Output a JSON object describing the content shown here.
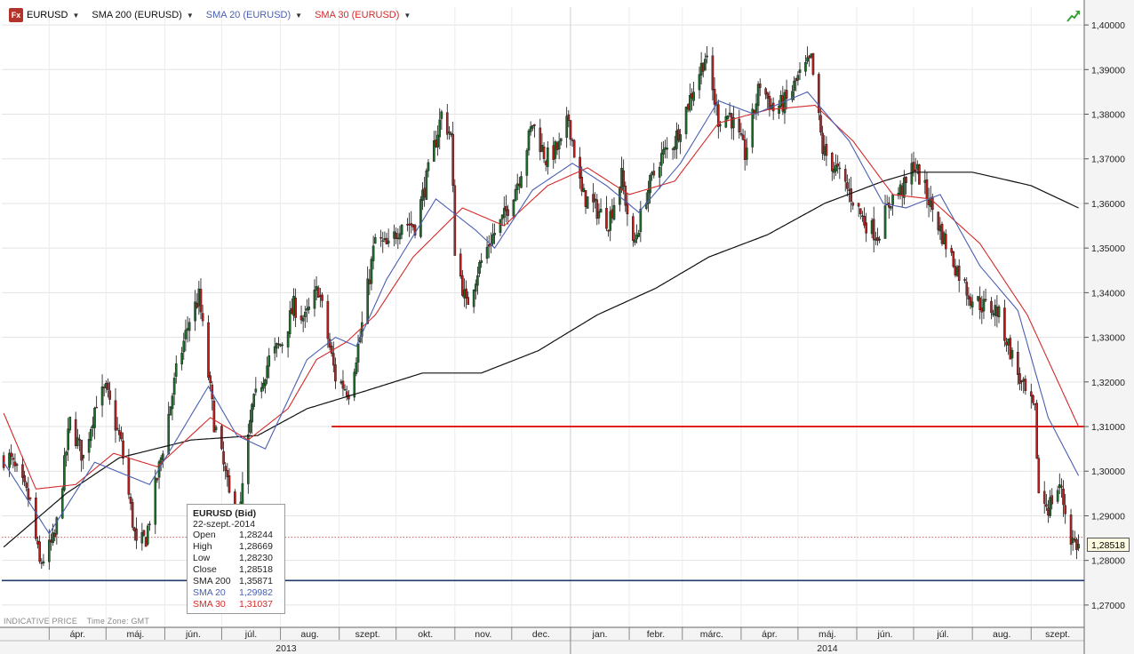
{
  "header": {
    "logo_text": "Fx",
    "symbol": "EURUSD",
    "indicators": [
      {
        "label": "SMA 200 (EURUSD)",
        "color": "#111111"
      },
      {
        "label": "SMA 20 (EURUSD)",
        "color": "#4a5fb0"
      },
      {
        "label": "SMA 30 (EURUSD)",
        "color": "#d42a2a"
      }
    ]
  },
  "footer": {
    "price_type": "INDICATIVE PRICE",
    "timezone": "Time Zone: GMT"
  },
  "tooltip": {
    "title": "EURUSD (Bid)",
    "date": "22-szept.-2014",
    "rows": [
      {
        "k": "Open",
        "v": "1,28244",
        "color": "#222222"
      },
      {
        "k": "High",
        "v": "1,28669",
        "color": "#222222"
      },
      {
        "k": "Low",
        "v": "1,28230",
        "color": "#222222"
      },
      {
        "k": "Close",
        "v": "1,28518",
        "color": "#222222"
      },
      {
        "k": "SMA 200",
        "v": "1,35871",
        "color": "#222222"
      },
      {
        "k": "SMA 20",
        "v": "1,29982",
        "color": "#4a5fb0"
      },
      {
        "k": "SMA 30",
        "v": "1,31037",
        "color": "#d42a2a"
      }
    ]
  },
  "last_price_label": "1,28518",
  "chart_data": {
    "type": "candlestick",
    "symbol": "EURUSD",
    "y_range": [
      1.265,
      1.404
    ],
    "y_ticks": [
      {
        "v": 1.27,
        "label": "1,27000"
      },
      {
        "v": 1.28,
        "label": "1,28000"
      },
      {
        "v": 1.29,
        "label": "1,29000"
      },
      {
        "v": 1.3,
        "label": "1,30000"
      },
      {
        "v": 1.31,
        "label": "1,31000"
      },
      {
        "v": 1.32,
        "label": "1,32000"
      },
      {
        "v": 1.33,
        "label": "1,33000"
      },
      {
        "v": 1.34,
        "label": "1,34000"
      },
      {
        "v": 1.35,
        "label": "1,35000"
      },
      {
        "v": 1.36,
        "label": "1,36000"
      },
      {
        "v": 1.37,
        "label": "1,37000"
      },
      {
        "v": 1.38,
        "label": "1,38000"
      },
      {
        "v": 1.39,
        "label": "1,39000"
      },
      {
        "v": 1.4,
        "label": "1,40000"
      }
    ],
    "x_range": [
      "2013-03-07",
      "2014-09-29"
    ],
    "months": [
      {
        "label": "ápr.",
        "start": "2013-04-01"
      },
      {
        "label": "máj.",
        "start": "2013-05-01"
      },
      {
        "label": "jún.",
        "start": "2013-06-01"
      },
      {
        "label": "júl.",
        "start": "2013-07-01"
      },
      {
        "label": "aug.",
        "start": "2013-08-01"
      },
      {
        "label": "szept.",
        "start": "2013-09-01"
      },
      {
        "label": "okt.",
        "start": "2013-10-01"
      },
      {
        "label": "nov.",
        "start": "2013-11-01"
      },
      {
        "label": "dec.",
        "start": "2013-12-01"
      },
      {
        "label": "jan.",
        "start": "2014-01-01"
      },
      {
        "label": "febr.",
        "start": "2014-02-01"
      },
      {
        "label": "márc.",
        "start": "2014-03-01"
      },
      {
        "label": "ápr.",
        "start": "2014-04-01"
      },
      {
        "label": "máj.",
        "start": "2014-05-01"
      },
      {
        "label": "jún.",
        "start": "2014-06-01"
      },
      {
        "label": "júl.",
        "start": "2014-07-01"
      },
      {
        "label": "aug.",
        "start": "2014-08-01"
      },
      {
        "label": "szept.",
        "start": "2014-09-01"
      }
    ],
    "years": [
      {
        "label": "2013",
        "start": "2013-03-07",
        "end": "2014-01-01"
      },
      {
        "label": "2014",
        "start": "2014-01-01",
        "end": "2014-09-29"
      }
    ],
    "close_anchors": [
      {
        "date": "2013-03-11",
        "v": 1.303
      },
      {
        "date": "2013-03-22",
        "v": 1.293
      },
      {
        "date": "2013-03-27",
        "v": 1.279
      },
      {
        "date": "2013-04-04",
        "v": 1.285
      },
      {
        "date": "2013-04-12",
        "v": 1.311
      },
      {
        "date": "2013-04-19",
        "v": 1.303
      },
      {
        "date": "2013-04-26",
        "v": 1.316
      },
      {
        "date": "2013-05-01",
        "v": 1.318
      },
      {
        "date": "2013-05-09",
        "v": 1.306
      },
      {
        "date": "2013-05-17",
        "v": 1.283
      },
      {
        "date": "2013-05-22",
        "v": 1.285
      },
      {
        "date": "2013-05-30",
        "v": 1.303
      },
      {
        "date": "2013-06-07",
        "v": 1.322
      },
      {
        "date": "2013-06-14",
        "v": 1.334
      },
      {
        "date": "2013-06-19",
        "v": 1.339
      },
      {
        "date": "2013-06-27",
        "v": 1.311
      },
      {
        "date": "2013-07-03",
        "v": 1.299
      },
      {
        "date": "2013-07-09",
        "v": 1.285
      },
      {
        "date": "2013-07-17",
        "v": 1.314
      },
      {
        "date": "2013-07-26",
        "v": 1.325
      },
      {
        "date": "2013-08-02",
        "v": 1.329
      },
      {
        "date": "2013-08-08",
        "v": 1.337
      },
      {
        "date": "2013-08-14",
        "v": 1.334
      },
      {
        "date": "2013-08-21",
        "v": 1.341
      },
      {
        "date": "2013-08-30",
        "v": 1.321
      },
      {
        "date": "2013-09-06",
        "v": 1.318
      },
      {
        "date": "2013-09-12",
        "v": 1.33
      },
      {
        "date": "2013-09-20",
        "v": 1.352
      },
      {
        "date": "2013-09-27",
        "v": 1.35
      },
      {
        "date": "2013-10-04",
        "v": 1.356
      },
      {
        "date": "2013-10-11",
        "v": 1.355
      },
      {
        "date": "2013-10-18",
        "v": 1.367
      },
      {
        "date": "2013-10-25",
        "v": 1.38
      },
      {
        "date": "2013-10-30",
        "v": 1.375
      },
      {
        "date": "2013-11-01",
        "v": 1.35
      },
      {
        "date": "2013-11-07",
        "v": 1.337
      },
      {
        "date": "2013-11-13",
        "v": 1.345
      },
      {
        "date": "2013-11-20",
        "v": 1.352
      },
      {
        "date": "2013-11-27",
        "v": 1.357
      },
      {
        "date": "2013-12-05",
        "v": 1.366
      },
      {
        "date": "2013-12-12",
        "v": 1.378
      },
      {
        "date": "2013-12-19",
        "v": 1.37
      },
      {
        "date": "2013-12-27",
        "v": 1.373
      },
      {
        "date": "2013-12-31",
        "v": 1.379
      },
      {
        "date": "2014-01-07",
        "v": 1.362
      },
      {
        "date": "2014-01-14",
        "v": 1.359
      },
      {
        "date": "2014-01-21",
        "v": 1.356
      },
      {
        "date": "2014-01-28",
        "v": 1.366
      },
      {
        "date": "2014-02-03",
        "v": 1.35
      },
      {
        "date": "2014-02-10",
        "v": 1.362
      },
      {
        "date": "2014-02-17",
        "v": 1.37
      },
      {
        "date": "2014-02-25",
        "v": 1.374
      },
      {
        "date": "2014-03-07",
        "v": 1.386
      },
      {
        "date": "2014-03-13",
        "v": 1.393
      },
      {
        "date": "2014-03-20",
        "v": 1.379
      },
      {
        "date": "2014-03-26",
        "v": 1.38
      },
      {
        "date": "2014-04-03",
        "v": 1.371
      },
      {
        "date": "2014-04-11",
        "v": 1.387
      },
      {
        "date": "2014-04-18",
        "v": 1.381
      },
      {
        "date": "2014-04-25",
        "v": 1.383
      },
      {
        "date": "2014-05-01",
        "v": 1.388
      },
      {
        "date": "2014-05-08",
        "v": 1.392
      },
      {
        "date": "2014-05-14",
        "v": 1.372
      },
      {
        "date": "2014-05-22",
        "v": 1.367
      },
      {
        "date": "2014-05-30",
        "v": 1.361
      },
      {
        "date": "2014-06-05",
        "v": 1.356
      },
      {
        "date": "2014-06-12",
        "v": 1.353
      },
      {
        "date": "2014-06-19",
        "v": 1.361
      },
      {
        "date": "2014-06-27",
        "v": 1.364
      },
      {
        "date": "2014-07-01",
        "v": 1.369
      },
      {
        "date": "2014-07-09",
        "v": 1.361
      },
      {
        "date": "2014-07-16",
        "v": 1.353
      },
      {
        "date": "2014-07-23",
        "v": 1.346
      },
      {
        "date": "2014-07-31",
        "v": 1.339
      },
      {
        "date": "2014-08-07",
        "v": 1.337
      },
      {
        "date": "2014-08-14",
        "v": 1.336
      },
      {
        "date": "2014-08-21",
        "v": 1.327
      },
      {
        "date": "2014-08-28",
        "v": 1.318
      },
      {
        "date": "2014-09-03",
        "v": 1.313
      },
      {
        "date": "2014-09-05",
        "v": 1.295
      },
      {
        "date": "2014-09-10",
        "v": 1.292
      },
      {
        "date": "2014-09-16",
        "v": 1.297
      },
      {
        "date": "2014-09-22",
        "v": 1.285
      },
      {
        "date": "2014-09-26",
        "v": 1.283
      }
    ],
    "sma200_anchors": [
      {
        "date": "2013-03-08",
        "v": 1.283
      },
      {
        "date": "2013-04-10",
        "v": 1.295
      },
      {
        "date": "2013-05-08",
        "v": 1.303
      },
      {
        "date": "2013-06-15",
        "v": 1.307
      },
      {
        "date": "2013-07-20",
        "v": 1.308
      },
      {
        "date": "2013-08-15",
        "v": 1.314
      },
      {
        "date": "2013-09-15",
        "v": 1.318
      },
      {
        "date": "2013-10-15",
        "v": 1.322
      },
      {
        "date": "2013-11-15",
        "v": 1.322
      },
      {
        "date": "2013-12-15",
        "v": 1.327
      },
      {
        "date": "2014-01-15",
        "v": 1.335
      },
      {
        "date": "2014-02-15",
        "v": 1.341
      },
      {
        "date": "2014-03-15",
        "v": 1.348
      },
      {
        "date": "2014-04-15",
        "v": 1.353
      },
      {
        "date": "2014-05-15",
        "v": 1.36
      },
      {
        "date": "2014-06-15",
        "v": 1.365
      },
      {
        "date": "2014-07-01",
        "v": 1.367
      },
      {
        "date": "2014-08-01",
        "v": 1.367
      },
      {
        "date": "2014-09-01",
        "v": 1.364
      },
      {
        "date": "2014-09-26",
        "v": 1.359
      }
    ],
    "sma20_anchors": [
      {
        "date": "2013-03-08",
        "v": 1.302
      },
      {
        "date": "2013-04-01",
        "v": 1.286
      },
      {
        "date": "2013-04-25",
        "v": 1.302
      },
      {
        "date": "2013-05-24",
        "v": 1.297
      },
      {
        "date": "2013-06-24",
        "v": 1.319
      },
      {
        "date": "2013-07-09",
        "v": 1.308
      },
      {
        "date": "2013-07-24",
        "v": 1.305
      },
      {
        "date": "2013-08-15",
        "v": 1.325
      },
      {
        "date": "2013-08-30",
        "v": 1.33
      },
      {
        "date": "2013-09-10",
        "v": 1.328
      },
      {
        "date": "2013-09-26",
        "v": 1.343
      },
      {
        "date": "2013-10-22",
        "v": 1.361
      },
      {
        "date": "2013-11-12",
        "v": 1.354
      },
      {
        "date": "2013-11-22",
        "v": 1.35
      },
      {
        "date": "2013-12-12",
        "v": 1.363
      },
      {
        "date": "2014-01-02",
        "v": 1.369
      },
      {
        "date": "2014-01-20",
        "v": 1.364
      },
      {
        "date": "2014-02-06",
        "v": 1.358
      },
      {
        "date": "2014-02-28",
        "v": 1.369
      },
      {
        "date": "2014-03-20",
        "v": 1.383
      },
      {
        "date": "2014-04-08",
        "v": 1.38
      },
      {
        "date": "2014-05-06",
        "v": 1.385
      },
      {
        "date": "2014-05-28",
        "v": 1.374
      },
      {
        "date": "2014-06-15",
        "v": 1.36
      },
      {
        "date": "2014-06-27",
        "v": 1.359
      },
      {
        "date": "2014-07-15",
        "v": 1.362
      },
      {
        "date": "2014-08-05",
        "v": 1.346
      },
      {
        "date": "2014-08-25",
        "v": 1.336
      },
      {
        "date": "2014-09-10",
        "v": 1.312
      },
      {
        "date": "2014-09-26",
        "v": 1.299
      }
    ],
    "sma30_anchors": [
      {
        "date": "2013-03-08",
        "v": 1.313
      },
      {
        "date": "2013-03-25",
        "v": 1.296
      },
      {
        "date": "2013-04-15",
        "v": 1.297
      },
      {
        "date": "2013-05-05",
        "v": 1.304
      },
      {
        "date": "2013-05-28",
        "v": 1.301
      },
      {
        "date": "2013-06-25",
        "v": 1.312
      },
      {
        "date": "2013-07-15",
        "v": 1.307
      },
      {
        "date": "2013-08-05",
        "v": 1.314
      },
      {
        "date": "2013-08-20",
        "v": 1.325
      },
      {
        "date": "2013-09-05",
        "v": 1.329
      },
      {
        "date": "2013-09-20",
        "v": 1.335
      },
      {
        "date": "2013-10-10",
        "v": 1.348
      },
      {
        "date": "2013-11-05",
        "v": 1.359
      },
      {
        "date": "2013-11-27",
        "v": 1.355
      },
      {
        "date": "2013-12-20",
        "v": 1.364
      },
      {
        "date": "2014-01-10",
        "v": 1.368
      },
      {
        "date": "2014-02-01",
        "v": 1.362
      },
      {
        "date": "2014-02-25",
        "v": 1.365
      },
      {
        "date": "2014-03-20",
        "v": 1.378
      },
      {
        "date": "2014-04-15",
        "v": 1.381
      },
      {
        "date": "2014-05-10",
        "v": 1.382
      },
      {
        "date": "2014-05-30",
        "v": 1.374
      },
      {
        "date": "2014-06-20",
        "v": 1.362
      },
      {
        "date": "2014-07-10",
        "v": 1.361
      },
      {
        "date": "2014-08-05",
        "v": 1.351
      },
      {
        "date": "2014-08-30",
        "v": 1.335
      },
      {
        "date": "2014-09-26",
        "v": 1.31
      }
    ],
    "horizontal_lines": [
      {
        "name": "support-resistance",
        "v": 1.31,
        "start": "2013-08-28",
        "end": "2014-09-29",
        "color": "#e0201a"
      },
      {
        "name": "bottom-level",
        "v": 1.2755,
        "start": "2013-03-07",
        "end": "2014-09-29",
        "color": "#1f3a6e"
      },
      {
        "name": "last-price",
        "v": 1.28518,
        "start": "2013-03-07",
        "end": "2014-09-29",
        "color": "#c44444"
      }
    ]
  }
}
